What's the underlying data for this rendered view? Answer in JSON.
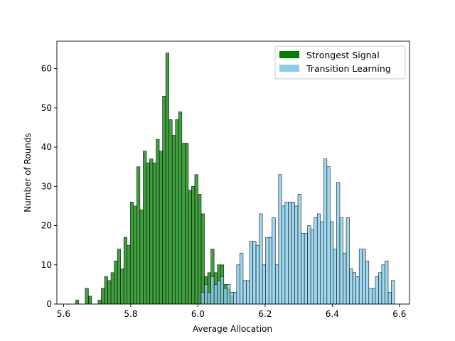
{
  "chart_data": {
    "type": "bar",
    "subtype": "overlapping-histogram",
    "title": "",
    "xlabel": "Average Allocation",
    "ylabel": "Number of Rounds",
    "xlim": [
      5.58,
      6.63
    ],
    "ylim": [
      0,
      67
    ],
    "x_ticks": [
      5.6,
      5.8,
      6.0,
      6.2,
      6.4,
      6.6
    ],
    "y_ticks": [
      0,
      10,
      20,
      30,
      40,
      50,
      60
    ],
    "grid": false,
    "legend_position": "top-right",
    "series": [
      {
        "name": "Strongest Signal",
        "color": "#008000",
        "fill_opacity": 0.75,
        "legend_color": "#008000",
        "bin_width": 0.0096,
        "bins": [
          [
            5.6355,
            1
          ],
          [
            5.6643,
            4
          ],
          [
            5.6739,
            2
          ],
          [
            5.7026,
            1
          ],
          [
            5.7122,
            4
          ],
          [
            5.7218,
            7
          ],
          [
            5.7314,
            6
          ],
          [
            5.741,
            8
          ],
          [
            5.7506,
            11
          ],
          [
            5.7602,
            14
          ],
          [
            5.7698,
            9
          ],
          [
            5.7794,
            17
          ],
          [
            5.789,
            15
          ],
          [
            5.7986,
            26
          ],
          [
            5.8082,
            25
          ],
          [
            5.8178,
            35
          ],
          [
            5.8274,
            24
          ],
          [
            5.837,
            39
          ],
          [
            5.8466,
            36
          ],
          [
            5.8562,
            37
          ],
          [
            5.8658,
            36
          ],
          [
            5.8754,
            42
          ],
          [
            5.885,
            39
          ],
          [
            5.8946,
            53
          ],
          [
            5.9042,
            64
          ],
          [
            5.9138,
            47
          ],
          [
            5.9234,
            43
          ],
          [
            5.933,
            47
          ],
          [
            5.9426,
            49
          ],
          [
            5.9522,
            41
          ],
          [
            5.9618,
            41
          ],
          [
            5.9714,
            29
          ],
          [
            5.981,
            30
          ],
          [
            5.9906,
            33
          ],
          [
            6.0002,
            28
          ],
          [
            6.0098,
            23
          ],
          [
            6.0194,
            7
          ],
          [
            6.029,
            8
          ],
          [
            6.0386,
            14
          ],
          [
            6.0482,
            8
          ],
          [
            6.0578,
            10
          ],
          [
            6.0674,
            10
          ],
          [
            6.077,
            5
          ],
          [
            6.0866,
            4
          ],
          [
            6.0962,
            2
          ]
        ]
      },
      {
        "name": "Transition Learning",
        "color": "#87ceeb",
        "fill_opacity": 0.8,
        "legend_color": "#87ceeb",
        "bin_width": 0.0096,
        "bins": [
          [
            6.0097,
            3
          ],
          [
            6.0193,
            5
          ],
          [
            6.0289,
            3
          ],
          [
            6.0385,
            7
          ],
          [
            6.0481,
            5
          ],
          [
            6.0577,
            6
          ],
          [
            6.0673,
            7
          ],
          [
            6.0769,
            4
          ],
          [
            6.0865,
            5
          ],
          [
            6.0961,
            3
          ],
          [
            6.1057,
            3
          ],
          [
            6.1153,
            10
          ],
          [
            6.1249,
            13
          ],
          [
            6.1345,
            6
          ],
          [
            6.1441,
            6
          ],
          [
            6.1537,
            16
          ],
          [
            6.1633,
            16
          ],
          [
            6.1729,
            15
          ],
          [
            6.1825,
            23
          ],
          [
            6.1921,
            10
          ],
          [
            6.2017,
            17
          ],
          [
            6.2113,
            17
          ],
          [
            6.2209,
            22
          ],
          [
            6.2305,
            10
          ],
          [
            6.2401,
            33
          ],
          [
            6.2497,
            25
          ],
          [
            6.2593,
            26
          ],
          [
            6.2689,
            26
          ],
          [
            6.2785,
            26
          ],
          [
            6.2881,
            25
          ],
          [
            6.2977,
            28
          ],
          [
            6.3073,
            18
          ],
          [
            6.3169,
            18
          ],
          [
            6.3265,
            20
          ],
          [
            6.3361,
            19
          ],
          [
            6.3457,
            22
          ],
          [
            6.3553,
            23
          ],
          [
            6.3649,
            21
          ],
          [
            6.3745,
            37
          ],
          [
            6.3841,
            35
          ],
          [
            6.3937,
            21
          ],
          [
            6.4033,
            14
          ],
          [
            6.4129,
            31
          ],
          [
            6.4225,
            22
          ],
          [
            6.4321,
            13
          ],
          [
            6.4417,
            22
          ],
          [
            6.4513,
            9
          ],
          [
            6.4609,
            8
          ],
          [
            6.4705,
            7
          ],
          [
            6.4801,
            14
          ],
          [
            6.4897,
            14
          ],
          [
            6.4993,
            11
          ],
          [
            6.5089,
            4
          ],
          [
            6.5185,
            4
          ],
          [
            6.5281,
            7
          ],
          [
            6.5377,
            8
          ],
          [
            6.5473,
            10
          ],
          [
            6.5569,
            11
          ],
          [
            6.5665,
            3
          ],
          [
            6.5761,
            6
          ]
        ]
      }
    ]
  }
}
